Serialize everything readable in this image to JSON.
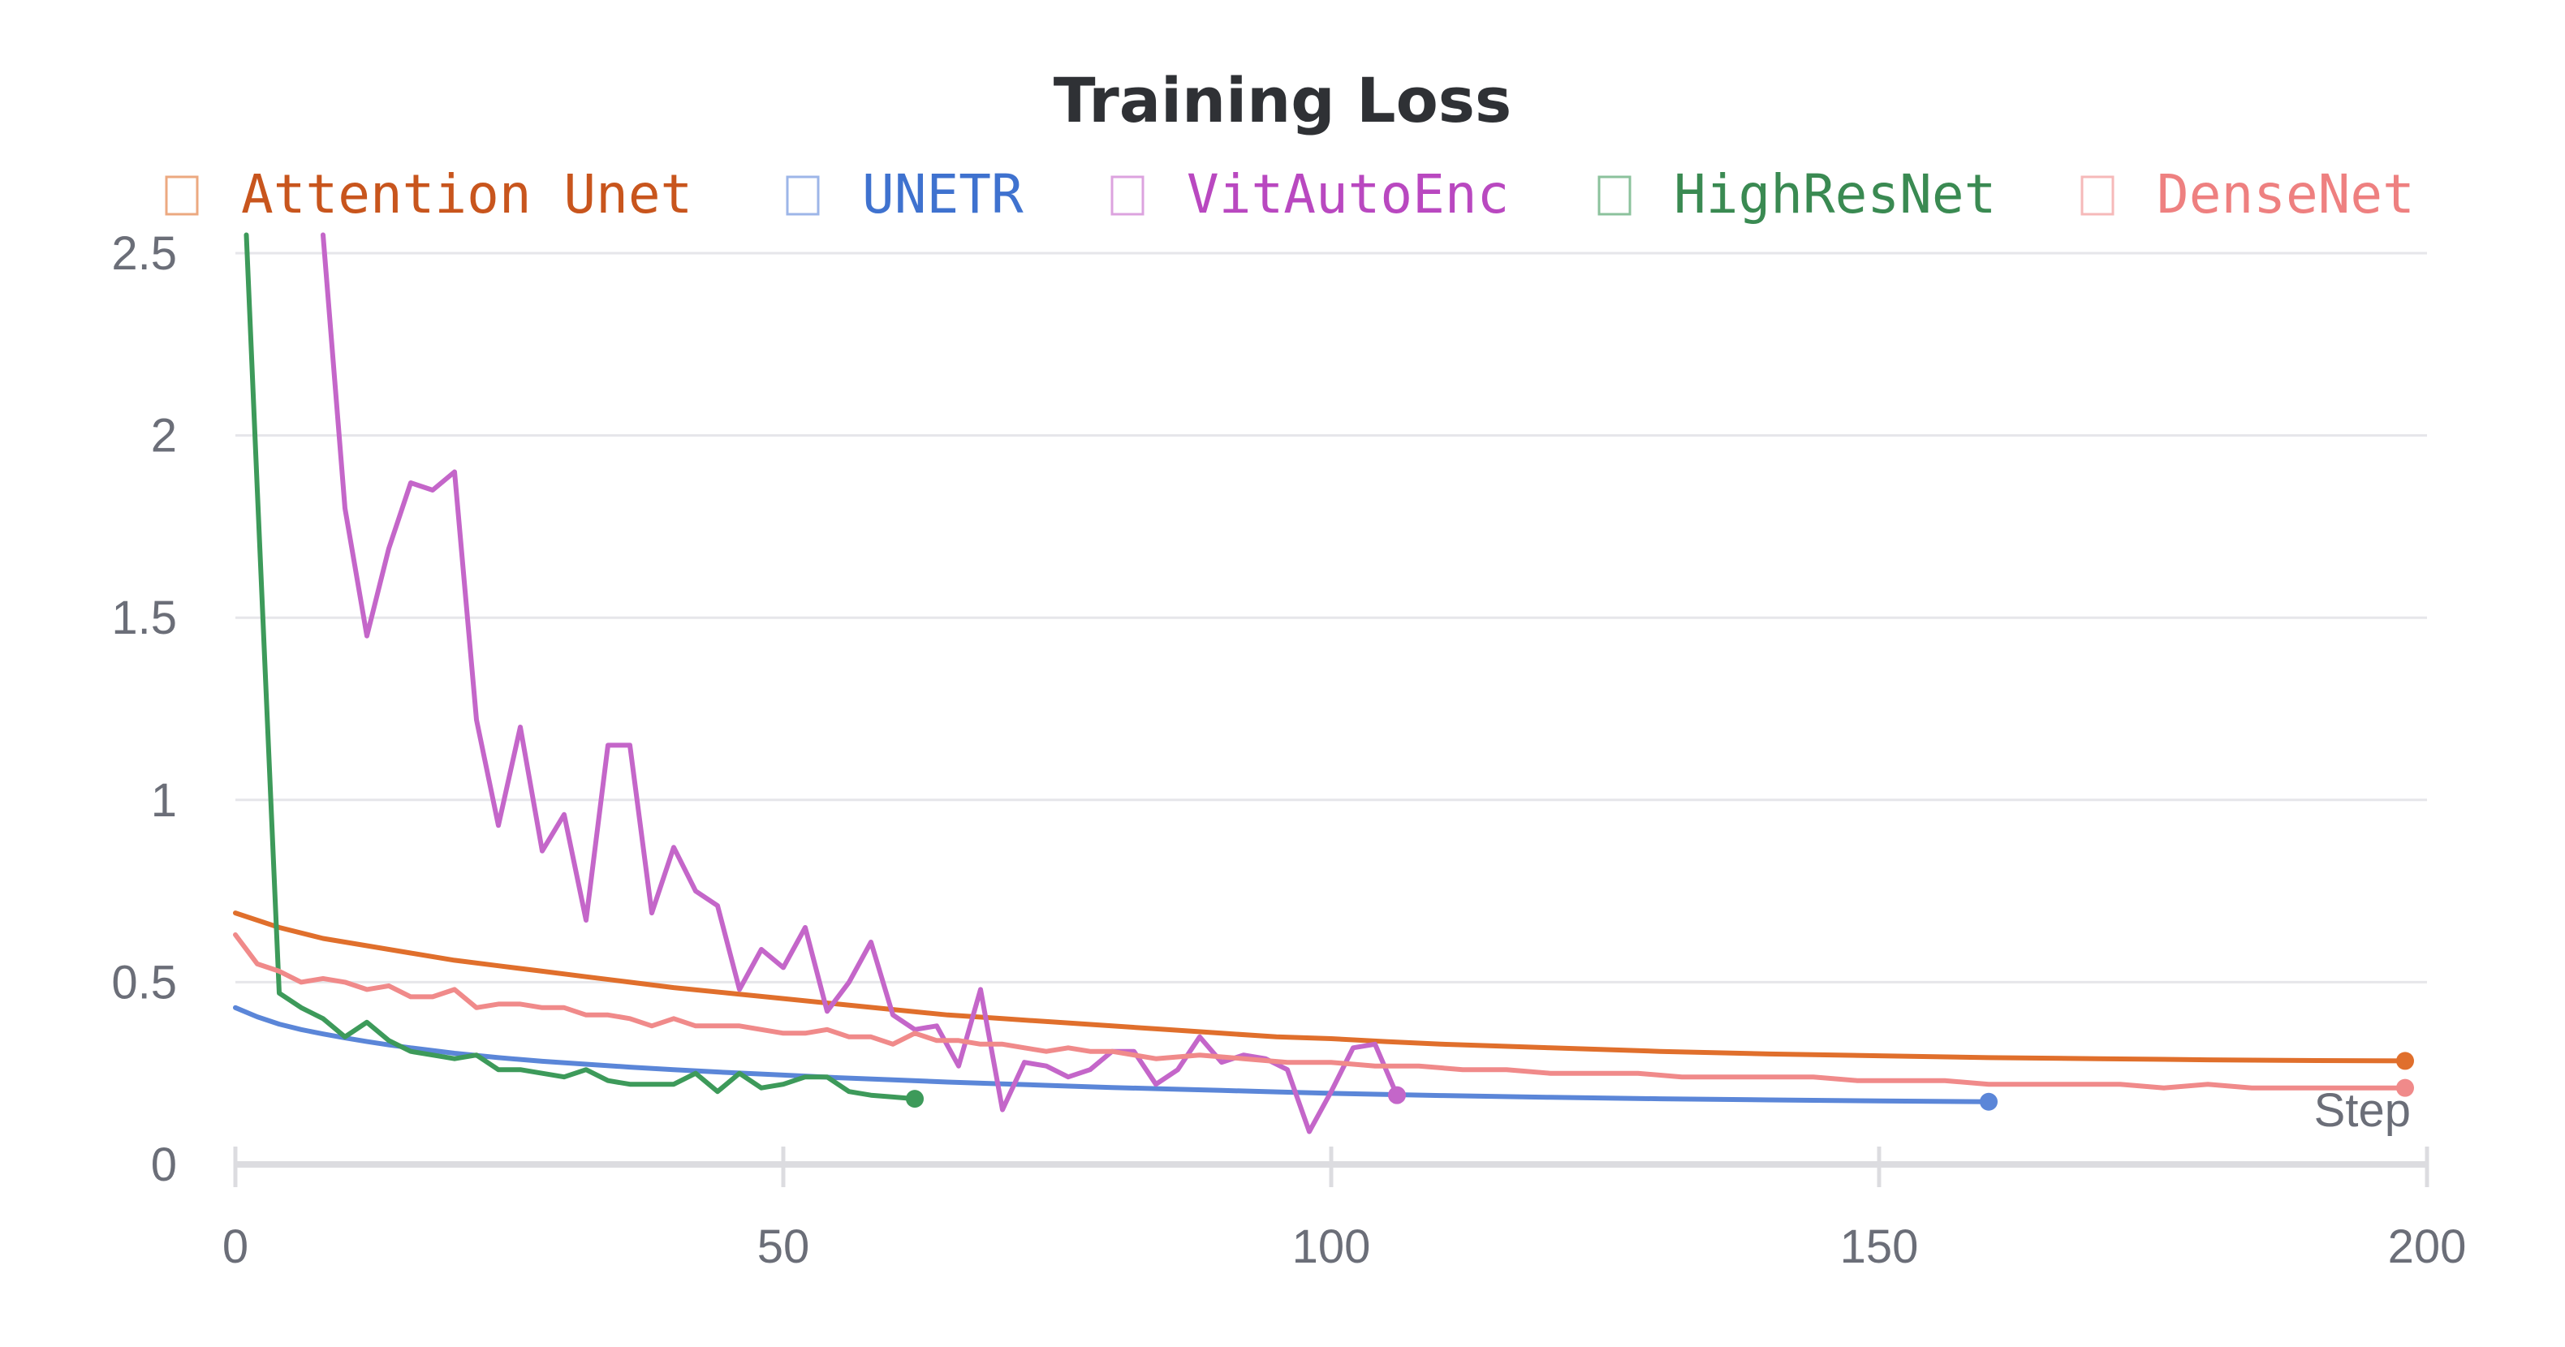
{
  "chart_data": {
    "type": "line",
    "title": "Training Loss",
    "xlabel": "Step",
    "ylabel": "",
    "xlim": [
      0,
      200
    ],
    "ylim": [
      0,
      2.5
    ],
    "x_ticks": [
      0,
      50,
      100,
      150,
      200
    ],
    "x_tick_labels": [
      "0",
      "50",
      "100",
      "150",
      "200"
    ],
    "y_ticks": [
      0,
      0.5,
      1,
      1.5,
      2,
      2.5
    ],
    "y_tick_labels": [
      "0",
      "0.5",
      "1",
      "1.5",
      "2",
      "2.5"
    ],
    "grid": true,
    "legend_position": "top",
    "series": [
      {
        "name": "Attention Unet",
        "color": "#e06f2c",
        "legend_color": "#c8551d",
        "end_marker": true,
        "points": [
          [
            0,
            0.69
          ],
          [
            4,
            0.65
          ],
          [
            8,
            0.62
          ],
          [
            12,
            0.6
          ],
          [
            16,
            0.58
          ],
          [
            20,
            0.56
          ],
          [
            24,
            0.545
          ],
          [
            28,
            0.53
          ],
          [
            32,
            0.515
          ],
          [
            36,
            0.5
          ],
          [
            40,
            0.485
          ],
          [
            45,
            0.47
          ],
          [
            50,
            0.455
          ],
          [
            55,
            0.44
          ],
          [
            60,
            0.425
          ],
          [
            65,
            0.41
          ],
          [
            70,
            0.4
          ],
          [
            75,
            0.39
          ],
          [
            80,
            0.38
          ],
          [
            85,
            0.37
          ],
          [
            90,
            0.36
          ],
          [
            95,
            0.35
          ],
          [
            100,
            0.345
          ],
          [
            105,
            0.337
          ],
          [
            110,
            0.33
          ],
          [
            115,
            0.325
          ],
          [
            120,
            0.32
          ],
          [
            130,
            0.31
          ],
          [
            140,
            0.303
          ],
          [
            150,
            0.298
          ],
          [
            160,
            0.293
          ],
          [
            170,
            0.29
          ],
          [
            180,
            0.287
          ],
          [
            190,
            0.285
          ],
          [
            198,
            0.284
          ]
        ]
      },
      {
        "name": "UNETR",
        "color": "#5b86d8",
        "legend_color": "#3f72cf",
        "end_marker": true,
        "points": [
          [
            0,
            0.43
          ],
          [
            2,
            0.405
          ],
          [
            4,
            0.385
          ],
          [
            6,
            0.37
          ],
          [
            8,
            0.358
          ],
          [
            10,
            0.347
          ],
          [
            12,
            0.337
          ],
          [
            14,
            0.328
          ],
          [
            16,
            0.32
          ],
          [
            20,
            0.305
          ],
          [
            24,
            0.293
          ],
          [
            28,
            0.283
          ],
          [
            32,
            0.275
          ],
          [
            36,
            0.267
          ],
          [
            40,
            0.26
          ],
          [
            45,
            0.252
          ],
          [
            50,
            0.245
          ],
          [
            55,
            0.238
          ],
          [
            60,
            0.232
          ],
          [
            65,
            0.226
          ],
          [
            70,
            0.221
          ],
          [
            75,
            0.216
          ],
          [
            80,
            0.211
          ],
          [
            85,
            0.207
          ],
          [
            90,
            0.203
          ],
          [
            95,
            0.199
          ],
          [
            100,
            0.195
          ],
          [
            110,
            0.189
          ],
          [
            120,
            0.184
          ],
          [
            130,
            0.18
          ],
          [
            140,
            0.177
          ],
          [
            150,
            0.174
          ],
          [
            160,
            0.172
          ]
        ]
      },
      {
        "name": "VitAutoEnc",
        "color": "#c466c9",
        "legend_color": "#b948c0",
        "end_marker": true,
        "points": [
          [
            8,
            2.55
          ],
          [
            10,
            1.8
          ],
          [
            12,
            1.45
          ],
          [
            14,
            1.69
          ],
          [
            16,
            1.87
          ],
          [
            18,
            1.85
          ],
          [
            20,
            1.9
          ],
          [
            22,
            1.22
          ],
          [
            24,
            0.93
          ],
          [
            26,
            1.2
          ],
          [
            28,
            0.86
          ],
          [
            30,
            0.96
          ],
          [
            32,
            0.67
          ],
          [
            34,
            1.15
          ],
          [
            36,
            1.15
          ],
          [
            38,
            0.69
          ],
          [
            40,
            0.87
          ],
          [
            42,
            0.75
          ],
          [
            44,
            0.71
          ],
          [
            46,
            0.48
          ],
          [
            48,
            0.59
          ],
          [
            50,
            0.54
          ],
          [
            52,
            0.65
          ],
          [
            54,
            0.42
          ],
          [
            56,
            0.5
          ],
          [
            58,
            0.61
          ],
          [
            60,
            0.41
          ],
          [
            62,
            0.37
          ],
          [
            64,
            0.38
          ],
          [
            66,
            0.27
          ],
          [
            68,
            0.48
          ],
          [
            70,
            0.15
          ],
          [
            72,
            0.28
          ],
          [
            74,
            0.27
          ],
          [
            76,
            0.24
          ],
          [
            78,
            0.26
          ],
          [
            80,
            0.31
          ],
          [
            82,
            0.31
          ],
          [
            84,
            0.22
          ],
          [
            86,
            0.26
          ],
          [
            88,
            0.35
          ],
          [
            90,
            0.28
          ],
          [
            92,
            0.3
          ],
          [
            94,
            0.29
          ],
          [
            96,
            0.26
          ],
          [
            98,
            0.09
          ],
          [
            100,
            0.2
          ],
          [
            102,
            0.32
          ],
          [
            104,
            0.33
          ],
          [
            106,
            0.19
          ]
        ]
      },
      {
        "name": "HighResNet",
        "color": "#3d9a5a",
        "legend_color": "#3a8a52",
        "end_marker": true,
        "points": [
          [
            1,
            2.6
          ],
          [
            2,
            1.85
          ],
          [
            4,
            0.47
          ],
          [
            6,
            0.43
          ],
          [
            8,
            0.4
          ],
          [
            10,
            0.35
          ],
          [
            12,
            0.39
          ],
          [
            14,
            0.34
          ],
          [
            16,
            0.31
          ],
          [
            18,
            0.3
          ],
          [
            20,
            0.29
          ],
          [
            22,
            0.3
          ],
          [
            24,
            0.26
          ],
          [
            26,
            0.26
          ],
          [
            28,
            0.25
          ],
          [
            30,
            0.24
          ],
          [
            32,
            0.26
          ],
          [
            34,
            0.23
          ],
          [
            36,
            0.22
          ],
          [
            38,
            0.22
          ],
          [
            40,
            0.22
          ],
          [
            42,
            0.25
          ],
          [
            44,
            0.2
          ],
          [
            46,
            0.25
          ],
          [
            48,
            0.21
          ],
          [
            50,
            0.22
          ],
          [
            52,
            0.24
          ],
          [
            54,
            0.24
          ],
          [
            56,
            0.2
          ],
          [
            58,
            0.19
          ],
          [
            60,
            0.185
          ],
          [
            62,
            0.18
          ]
        ]
      },
      {
        "name": "DenseNet",
        "color": "#f08a8a",
        "legend_color": "#ee8080",
        "end_marker": true,
        "points": [
          [
            0,
            0.63
          ],
          [
            2,
            0.55
          ],
          [
            4,
            0.53
          ],
          [
            6,
            0.5
          ],
          [
            8,
            0.51
          ],
          [
            10,
            0.5
          ],
          [
            12,
            0.48
          ],
          [
            14,
            0.49
          ],
          [
            16,
            0.46
          ],
          [
            18,
            0.46
          ],
          [
            20,
            0.48
          ],
          [
            22,
            0.43
          ],
          [
            24,
            0.44
          ],
          [
            26,
            0.44
          ],
          [
            28,
            0.43
          ],
          [
            30,
            0.43
          ],
          [
            32,
            0.41
          ],
          [
            34,
            0.41
          ],
          [
            36,
            0.4
          ],
          [
            38,
            0.38
          ],
          [
            40,
            0.4
          ],
          [
            42,
            0.38
          ],
          [
            44,
            0.38
          ],
          [
            46,
            0.38
          ],
          [
            48,
            0.37
          ],
          [
            50,
            0.36
          ],
          [
            52,
            0.36
          ],
          [
            54,
            0.37
          ],
          [
            56,
            0.35
          ],
          [
            58,
            0.35
          ],
          [
            60,
            0.33
          ],
          [
            62,
            0.36
          ],
          [
            64,
            0.34
          ],
          [
            66,
            0.34
          ],
          [
            68,
            0.33
          ],
          [
            70,
            0.33
          ],
          [
            72,
            0.32
          ],
          [
            74,
            0.31
          ],
          [
            76,
            0.32
          ],
          [
            78,
            0.31
          ],
          [
            80,
            0.31
          ],
          [
            84,
            0.29
          ],
          [
            88,
            0.3
          ],
          [
            92,
            0.29
          ],
          [
            96,
            0.28
          ],
          [
            100,
            0.28
          ],
          [
            104,
            0.27
          ],
          [
            108,
            0.27
          ],
          [
            112,
            0.26
          ],
          [
            116,
            0.26
          ],
          [
            120,
            0.25
          ],
          [
            124,
            0.25
          ],
          [
            128,
            0.25
          ],
          [
            132,
            0.24
          ],
          [
            136,
            0.24
          ],
          [
            140,
            0.24
          ],
          [
            144,
            0.24
          ],
          [
            148,
            0.23
          ],
          [
            152,
            0.23
          ],
          [
            156,
            0.23
          ],
          [
            160,
            0.22
          ],
          [
            164,
            0.22
          ],
          [
            168,
            0.22
          ],
          [
            172,
            0.22
          ],
          [
            176,
            0.21
          ],
          [
            180,
            0.22
          ],
          [
            184,
            0.21
          ],
          [
            188,
            0.21
          ],
          [
            192,
            0.21
          ],
          [
            196,
            0.21
          ],
          [
            198,
            0.21
          ]
        ]
      }
    ]
  }
}
